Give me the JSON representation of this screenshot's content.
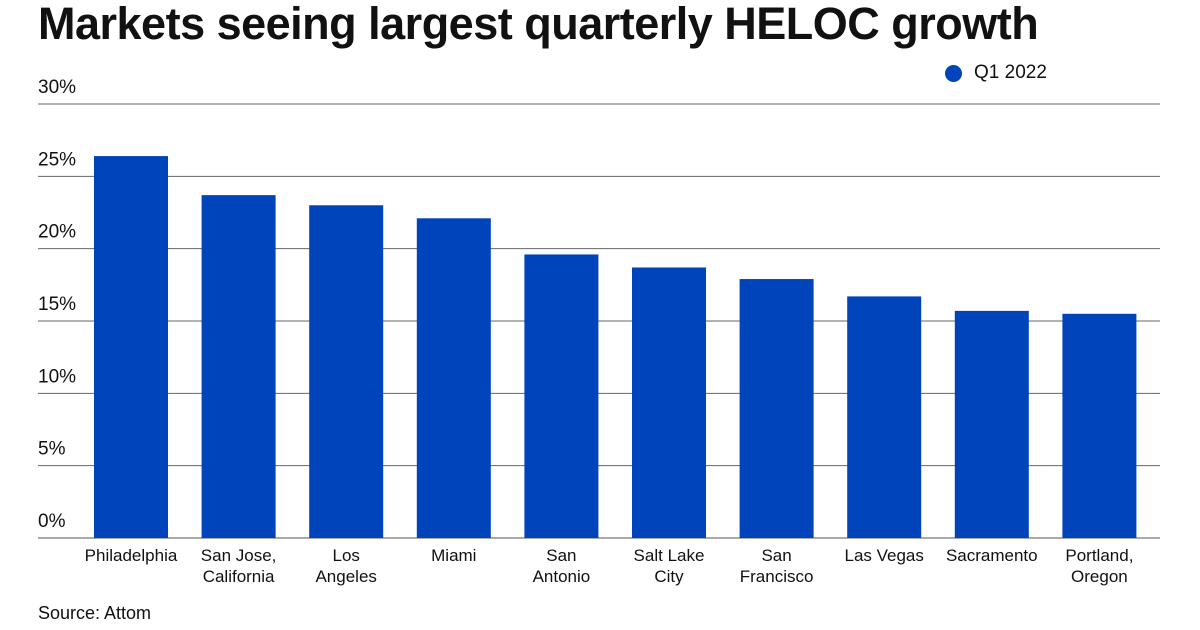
{
  "chart_data": {
    "type": "bar",
    "title": "Markets seeing largest quarterly HELOC growth",
    "categories": [
      [
        "Philadelphia"
      ],
      [
        "San Jose,",
        "California"
      ],
      [
        "Los",
        "Angeles"
      ],
      [
        "Miami"
      ],
      [
        "San",
        "Antonio"
      ],
      [
        "Salt Lake",
        "City"
      ],
      [
        "San",
        "Francisco"
      ],
      [
        "Las Vegas"
      ],
      [
        "Sacramento"
      ],
      [
        "Portland,",
        "Oregon"
      ]
    ],
    "series": [
      {
        "name": "Q1 2022",
        "color": "#0044bb",
        "values": [
          26.4,
          23.7,
          23.0,
          22.1,
          19.6,
          18.7,
          17.9,
          16.7,
          15.7,
          15.5
        ]
      }
    ],
    "yticks": [
      "0%",
      "5%",
      "10%",
      "15%",
      "20%",
      "25%",
      "30%"
    ],
    "ytick_values": [
      0,
      5,
      10,
      15,
      20,
      25,
      30
    ],
    "ylim": [
      0,
      30
    ],
    "xlabel": "",
    "ylabel": "",
    "grid": true,
    "legend_position": "top-right",
    "source": "Source: Attom"
  }
}
